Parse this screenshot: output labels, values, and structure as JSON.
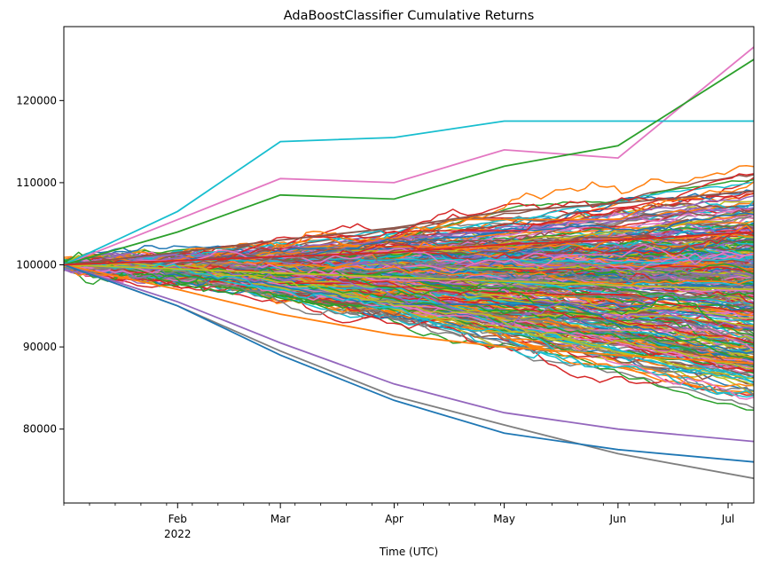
{
  "chart_data": {
    "type": "line",
    "title": "AdaBoostClassifier Cumulative Returns",
    "xlabel": "Time (UTC)",
    "ylabel": "",
    "x_range": [
      "2022-01-01",
      "2022-07-08"
    ],
    "ylim": [
      71000,
      129000
    ],
    "x_ticks": [
      {
        "date": "2022-02-01",
        "label": "Feb",
        "sublabel": "2022"
      },
      {
        "date": "2022-03-01",
        "label": "Mar",
        "sublabel": ""
      },
      {
        "date": "2022-04-01",
        "label": "Apr",
        "sublabel": ""
      },
      {
        "date": "2022-05-01",
        "label": "May",
        "sublabel": ""
      },
      {
        "date": "2022-06-01",
        "label": "Jun",
        "sublabel": ""
      },
      {
        "date": "2022-07-01",
        "label": "Jul",
        "sublabel": ""
      }
    ],
    "y_ticks": [
      80000,
      90000,
      100000,
      110000,
      120000
    ],
    "y_tick_labels": [
      "80000",
      "90000",
      "100000",
      "110000",
      "120000"
    ],
    "start_value": 100000,
    "end_value_range": [
      74000,
      126500
    ],
    "grid": false,
    "legend": "none",
    "series_count": 400,
    "colors": [
      "#1f77b4",
      "#ff7f0e",
      "#2ca02c",
      "#d62728",
      "#9467bd",
      "#8c564b",
      "#e377c2",
      "#7f7f7f",
      "#bcbd22",
      "#17becf"
    ],
    "series": [
      {
        "x": [
          "2022-01-01",
          "2022-02-01",
          "2022-03-01",
          "2022-04-01",
          "2022-05-01",
          "2022-06-01",
          "2022-07-08"
        ],
        "values": [
          100000,
          105500,
          110500,
          110000,
          114000,
          113000,
          126500
        ]
      },
      {
        "x": [
          "2022-01-01",
          "2022-02-01",
          "2022-03-01",
          "2022-04-01",
          "2022-05-01",
          "2022-06-01",
          "2022-07-08"
        ],
        "values": [
          100000,
          106500,
          115000,
          115500,
          117500,
          117500,
          117500
        ]
      },
      {
        "x": [
          "2022-01-01",
          "2022-02-01",
          "2022-03-01",
          "2022-04-01",
          "2022-05-01",
          "2022-06-01",
          "2022-07-08"
        ],
        "values": [
          100000,
          104000,
          108500,
          108000,
          112000,
          114500,
          125000
        ]
      },
      {
        "x": [
          "2022-01-01",
          "2022-02-01",
          "2022-03-01",
          "2022-04-01",
          "2022-05-01",
          "2022-06-01",
          "2022-07-08"
        ],
        "values": [
          100000,
          101500,
          103000,
          104500,
          106500,
          107500,
          109000
        ]
      },
      {
        "x": [
          "2022-01-01",
          "2022-02-01",
          "2022-03-01",
          "2022-04-01",
          "2022-05-01",
          "2022-06-01",
          "2022-07-08"
        ],
        "values": [
          100000,
          99500,
          99000,
          98500,
          98000,
          97500,
          97000
        ]
      },
      {
        "x": [
          "2022-01-01",
          "2022-02-01",
          "2022-03-01",
          "2022-04-01",
          "2022-05-01",
          "2022-06-01",
          "2022-07-08"
        ],
        "values": [
          100000,
          97000,
          94000,
          91500,
          90000,
          89000,
          88000
        ]
      },
      {
        "x": [
          "2022-01-01",
          "2022-02-01",
          "2022-03-01",
          "2022-04-01",
          "2022-05-01",
          "2022-06-01",
          "2022-07-08"
        ],
        "values": [
          100000,
          95500,
          90500,
          85500,
          82000,
          80000,
          78500
        ]
      },
      {
        "x": [
          "2022-01-01",
          "2022-02-01",
          "2022-03-01",
          "2022-04-01",
          "2022-05-01",
          "2022-06-01",
          "2022-07-08"
        ],
        "values": [
          100000,
          95000,
          89500,
          84000,
          80500,
          77000,
          74000
        ]
      },
      {
        "x": [
          "2022-01-01",
          "2022-02-01",
          "2022-03-01",
          "2022-04-01",
          "2022-05-01",
          "2022-06-01",
          "2022-07-08"
        ],
        "values": [
          100000,
          95000,
          89000,
          83500,
          79500,
          77500,
          76000
        ]
      },
      {
        "x": [
          "2022-01-01",
          "2022-02-01",
          "2022-03-01",
          "2022-04-01",
          "2022-05-01",
          "2022-06-01",
          "2022-07-08"
        ],
        "values": [
          100000,
          100500,
          101000,
          101500,
          102500,
          103000,
          104000
        ]
      }
    ]
  }
}
